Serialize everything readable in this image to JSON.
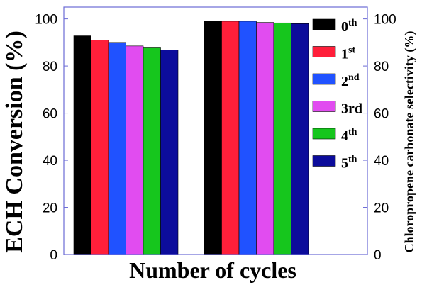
{
  "chart_data": {
    "type": "bar",
    "categories": [
      "",
      ""
    ],
    "series": [
      {
        "name": "0th",
        "label_base": "0",
        "label_sup": "th",
        "color": "#000000",
        "values": [
          92.8,
          99.0
        ]
      },
      {
        "name": "1st",
        "label_base": "1",
        "label_sup": "st",
        "color": "#ff1f3a",
        "values": [
          91.0,
          99.0
        ]
      },
      {
        "name": "2nd",
        "label_base": "2",
        "label_sup": "nd",
        "color": "#2052ff",
        "values": [
          90.0,
          99.0
        ]
      },
      {
        "name": "3rd",
        "label_base": "3rd",
        "label_sup": "",
        "color": "#e14cf0",
        "values": [
          88.5,
          98.5
        ]
      },
      {
        "name": "4th",
        "label_base": "4",
        "label_sup": "th",
        "color": "#16c61d",
        "values": [
          87.7,
          98.3
        ]
      },
      {
        "name": "5th",
        "label_base": "5",
        "label_sup": "th",
        "color": "#0c0c9b",
        "values": [
          86.8,
          98.0
        ]
      }
    ],
    "xlabel": "Number of cycles",
    "ylabel": "ECH Conversion (%)",
    "y2label": "Chloropropene carbonate selectivity (%)",
    "ylim": [
      0,
      105
    ],
    "yticks": [
      "0",
      "20",
      "40",
      "60",
      "80",
      "100"
    ],
    "y2ticks": [
      "0",
      "20",
      "40",
      "60",
      "80",
      "100"
    ],
    "legend_position": "right",
    "grid": false,
    "axis_color": "#6b6bd6"
  }
}
